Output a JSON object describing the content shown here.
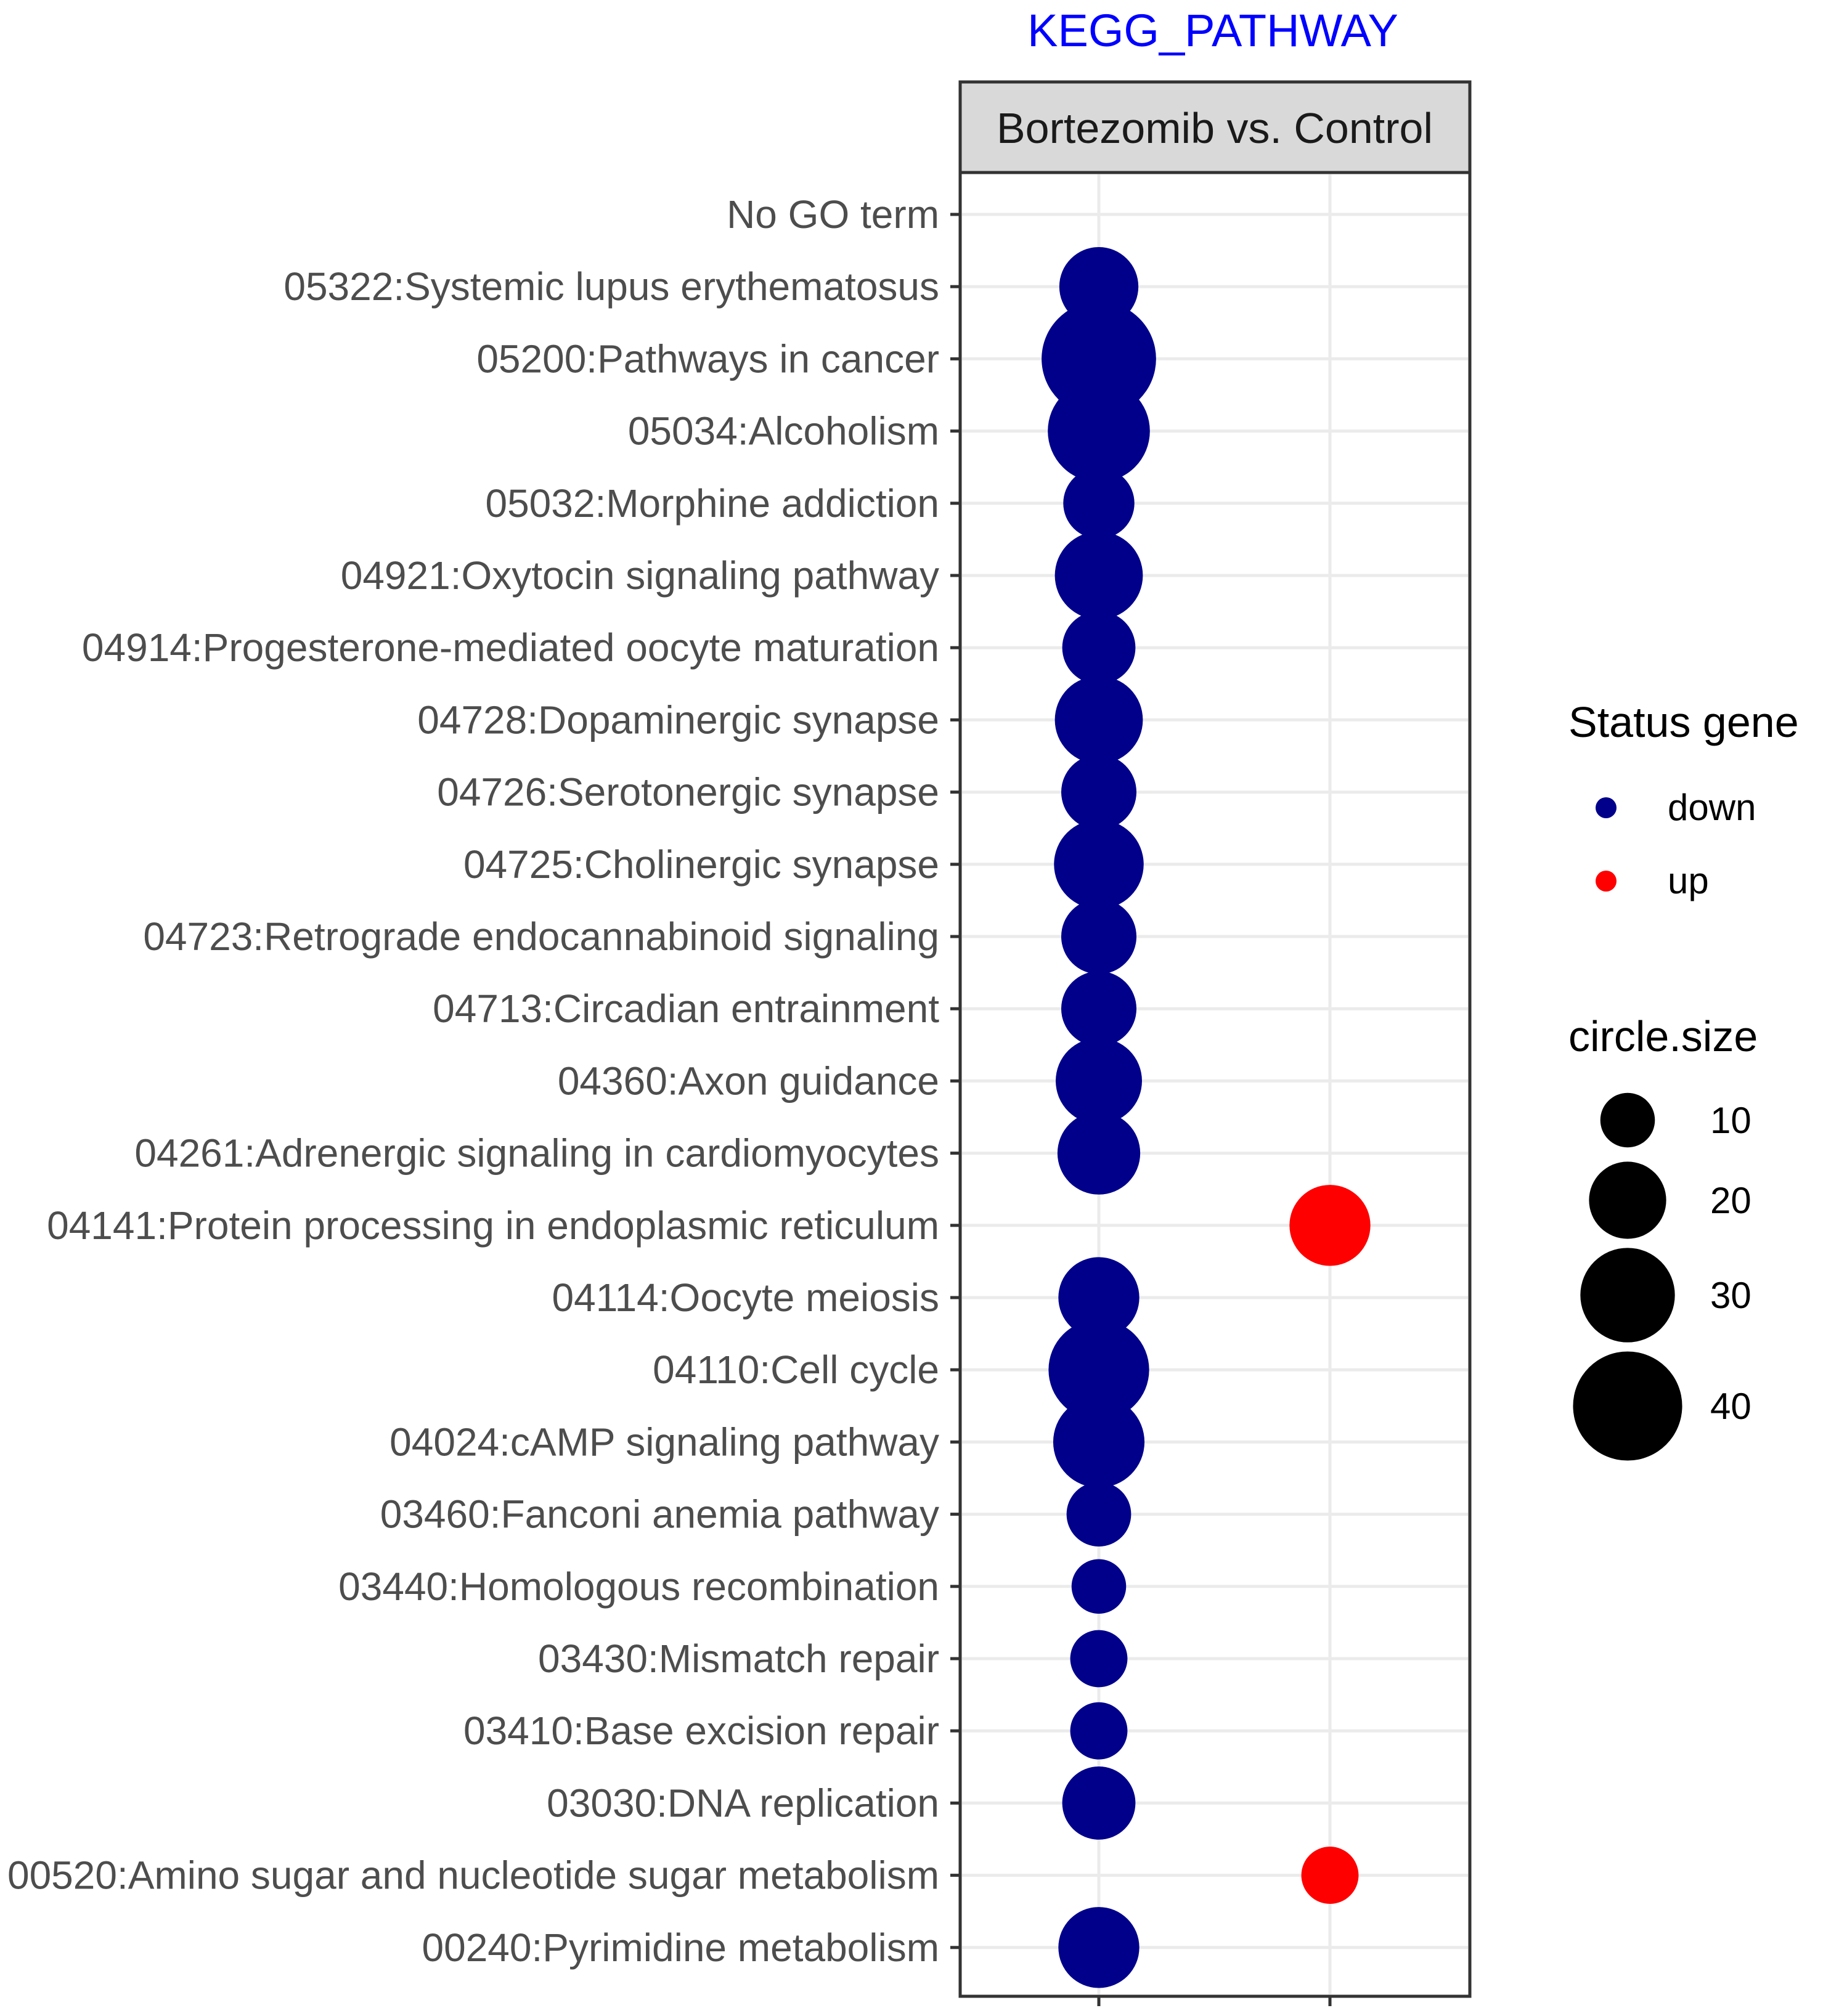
{
  "chart_data": {
    "type": "scatter",
    "title": "KEGG_PATHWAY",
    "facet_label": "Bortezomib vs. Control",
    "x_categories": [
      "down",
      "up"
    ],
    "categories": [
      "No GO term",
      "05322:Systemic lupus erythematosus",
      "05200:Pathways in cancer",
      "05034:Alcoholism",
      "05032:Morphine addiction",
      "04921:Oxytocin signaling pathway",
      "04914:Progesterone-mediated oocyte maturation",
      "04728:Dopaminergic synapse",
      "04726:Serotonergic synapse",
      "04725:Cholinergic synapse",
      "04723:Retrograde endocannabinoid signaling",
      "04713:Circadian entrainment",
      "04360:Axon guidance",
      "04261:Adrenergic signaling in cardiomyocytes",
      "04141:Protein processing in endoplasmic reticulum",
      "04114:Oocyte meiosis",
      "04110:Cell cycle",
      "04024:cAMP signaling pathway",
      "03460:Fanconi anemia pathway",
      "03440:Homologous recombination",
      "03430:Mismatch repair",
      "03410:Base excision repair",
      "03030:DNA replication",
      "00520:Amino sugar and nucleotide sugar metabolism",
      "00240:Pyrimidine metabolism"
    ],
    "points": [
      {
        "term": "05322:Systemic lupus erythematosus",
        "status": "down",
        "size": 21
      },
      {
        "term": "05200:Pathways in cancer",
        "status": "down",
        "size": 44
      },
      {
        "term": "05034:Alcoholism",
        "status": "down",
        "size": 35
      },
      {
        "term": "05032:Morphine addiction",
        "status": "down",
        "size": 17
      },
      {
        "term": "04921:Oxytocin signaling pathway",
        "status": "down",
        "size": 26
      },
      {
        "term": "04914:Progesterone-mediated oocyte maturation",
        "status": "down",
        "size": 18
      },
      {
        "term": "04728:Dopaminergic synapse",
        "status": "down",
        "size": 26
      },
      {
        "term": "04726:Serotonergic synapse",
        "status": "down",
        "size": 19
      },
      {
        "term": "04725:Cholinergic synapse",
        "status": "down",
        "size": 27
      },
      {
        "term": "04723:Retrograde endocannabinoid signaling",
        "status": "down",
        "size": 19
      },
      {
        "term": "04713:Circadian entrainment",
        "status": "down",
        "size": 19
      },
      {
        "term": "04360:Axon guidance",
        "status": "down",
        "size": 25
      },
      {
        "term": "04261:Adrenergic signaling in cardiomyocytes",
        "status": "down",
        "size": 23
      },
      {
        "term": "04141:Protein processing in endoplasmic reticulum",
        "status": "up",
        "size": 22
      },
      {
        "term": "04114:Oocyte meiosis",
        "status": "down",
        "size": 22
      },
      {
        "term": "04110:Cell cycle",
        "status": "down",
        "size": 34
      },
      {
        "term": "04024:cAMP signaling pathway",
        "status": "down",
        "size": 28
      },
      {
        "term": "03460:Fanconi anemia pathway",
        "status": "down",
        "size": 14
      },
      {
        "term": "03440:Homologous recombination",
        "status": "down",
        "size": 10
      },
      {
        "term": "03430:Mismatch repair",
        "status": "down",
        "size": 11
      },
      {
        "term": "03410:Base excision repair",
        "status": "down",
        "size": 11
      },
      {
        "term": "03030:DNA replication",
        "status": "down",
        "size": 18
      },
      {
        "term": "00520:Amino sugar and nucleotide sugar metabolism",
        "status": "up",
        "size": 11
      },
      {
        "term": "00240:Pyrimidine metabolism",
        "status": "down",
        "size": 22
      }
    ],
    "legend": {
      "color_title": "Status gene",
      "color_entries": [
        {
          "label": "down",
          "color": "#00008b"
        },
        {
          "label": "up",
          "color": "#ff0000"
        }
      ],
      "size_title": "circle.size",
      "size_entries": [
        10,
        20,
        30,
        40
      ],
      "placement": "right"
    },
    "colors": {
      "down": "#00008b",
      "up": "#ff0000",
      "title": "#0000ff",
      "strip_fill": "#d9d9d9",
      "grid": "#ebebeb",
      "axis_text": "#4d4d4d"
    }
  }
}
